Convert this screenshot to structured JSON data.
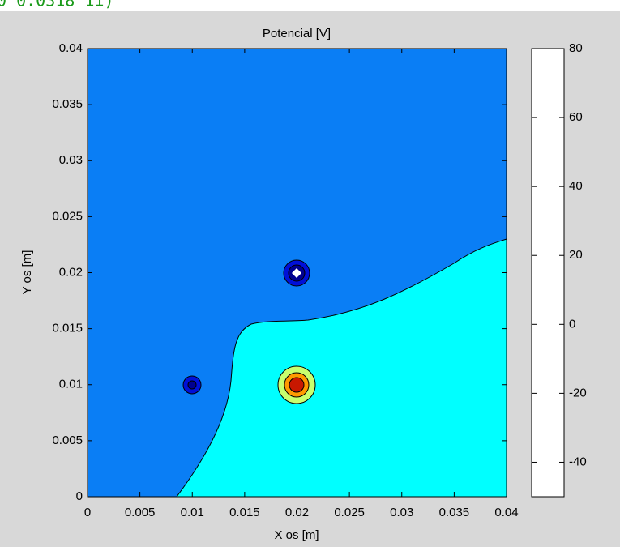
{
  "caption": "0 0.0318 11)",
  "chart_data": {
    "type": "contour",
    "title": "Potencial [V]",
    "x_label": "X os [m]",
    "y_label": "Y os  [m]",
    "xlim": [
      0,
      0.04
    ],
    "ylim": [
      0,
      0.04
    ],
    "xticks": [
      0,
      0.005,
      0.01,
      0.015,
      0.02,
      0.025,
      0.03,
      0.035,
      0.04
    ],
    "yticks": [
      0,
      0.005,
      0.01,
      0.015,
      0.02,
      0.025,
      0.03,
      0.035,
      0.04
    ],
    "colorbar": {
      "ylim": [
        -50,
        80
      ],
      "ticks": [
        -40,
        -20,
        0,
        20,
        40,
        60,
        80
      ],
      "color": "#ffffff"
    }
  }
}
